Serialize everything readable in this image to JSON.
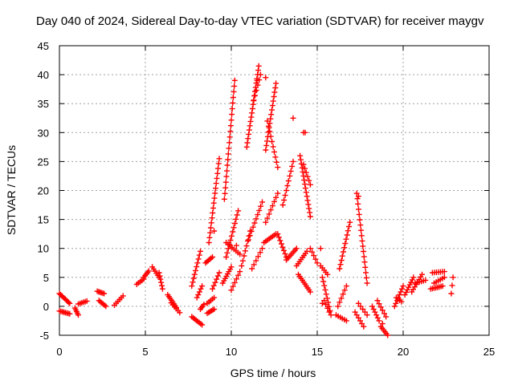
{
  "chart_data": {
    "type": "scatter",
    "title": "Day 040 of 2024, Sidereal Day-to-day VTEC variation (SDTVAR) for receiver maygv",
    "xlabel": "GPS time / hours",
    "ylabel": "SDTVAR / TECUs",
    "xlim": [
      0,
      25
    ],
    "ylim": [
      -5,
      45
    ],
    "xticks": [
      "0",
      "5",
      "10",
      "15",
      "20",
      "25"
    ],
    "yticks": [
      "-5",
      "0",
      "5",
      "10",
      "15",
      "20",
      "25",
      "30",
      "35",
      "40",
      "45"
    ],
    "grid": true,
    "marker": "+",
    "color": "#ff0000",
    "segments": [
      {
        "x0": 0.0,
        "y0": 2.2,
        "x1": 0.6,
        "y1": 0.5,
        "n": 10
      },
      {
        "x0": 0.0,
        "y0": -0.8,
        "x1": 0.6,
        "y1": -1.3,
        "n": 8
      },
      {
        "x0": 0.9,
        "y0": -0.3,
        "x1": 1.1,
        "y1": -1.5,
        "n": 5
      },
      {
        "x0": 1.1,
        "y0": 0.4,
        "x1": 1.6,
        "y1": 0.9,
        "n": 6
      },
      {
        "x0": 2.2,
        "y0": 2.6,
        "x1": 2.6,
        "y1": 2.2,
        "n": 6
      },
      {
        "x0": 2.3,
        "y0": 1.0,
        "x1": 2.7,
        "y1": 0.0,
        "n": 6
      },
      {
        "x0": 3.2,
        "y0": 0.2,
        "x1": 3.7,
        "y1": 1.8,
        "n": 6
      },
      {
        "x0": 4.5,
        "y0": 3.8,
        "x1": 4.9,
        "y1": 4.7,
        "n": 5
      },
      {
        "x0": 4.9,
        "y0": 5.0,
        "x1": 5.2,
        "y1": 6.1,
        "n": 5
      },
      {
        "x0": 5.4,
        "y0": 6.8,
        "x1": 5.8,
        "y1": 5.0,
        "n": 6
      },
      {
        "x0": 5.8,
        "y0": 5.8,
        "x1": 6.0,
        "y1": 3.0,
        "n": 6
      },
      {
        "x0": 6.3,
        "y0": 2.0,
        "x1": 6.8,
        "y1": -0.2,
        "n": 8
      },
      {
        "x0": 6.5,
        "y0": 0.6,
        "x1": 7.0,
        "y1": -1.1,
        "n": 6
      },
      {
        "x0": 7.7,
        "y0": 3.5,
        "x1": 8.2,
        "y1": 9.5,
        "n": 10
      },
      {
        "x0": 7.7,
        "y0": -1.8,
        "x1": 8.3,
        "y1": -3.2,
        "n": 8
      },
      {
        "x0": 8.0,
        "y0": 1.5,
        "x1": 8.3,
        "y1": 3.5,
        "n": 5
      },
      {
        "x0": 8.2,
        "y0": -0.5,
        "x1": 8.4,
        "y1": 0.3,
        "n": 4
      },
      {
        "x0": 8.5,
        "y0": 7.5,
        "x1": 8.9,
        "y1": 8.5,
        "n": 6
      },
      {
        "x0": 8.6,
        "y0": -1.2,
        "x1": 9.0,
        "y1": -0.5,
        "n": 6
      },
      {
        "x0": 8.7,
        "y0": 11.0,
        "x1": 9.3,
        "y1": 25.5,
        "n": 18
      },
      {
        "x0": 8.9,
        "y0": 3.0,
        "x1": 9.3,
        "y1": 5.8,
        "n": 6
      },
      {
        "x0": 8.6,
        "y0": 0.5,
        "x1": 9.0,
        "y1": 1.5,
        "n": 5
      },
      {
        "x0": 9.5,
        "y0": 4.0,
        "x1": 10.0,
        "y1": 6.8,
        "n": 8
      },
      {
        "x0": 9.6,
        "y0": 18.5,
        "x1": 10.2,
        "y1": 39.0,
        "n": 22
      },
      {
        "x0": 9.7,
        "y0": 8.5,
        "x1": 10.4,
        "y1": 16.5,
        "n": 12
      },
      {
        "x0": 9.7,
        "y0": 11.0,
        "x1": 10.5,
        "y1": 9.0,
        "n": 8
      },
      {
        "x0": 10.0,
        "y0": 2.8,
        "x1": 10.5,
        "y1": 6.0,
        "n": 6
      },
      {
        "x0": 10.6,
        "y0": 7.0,
        "x1": 11.1,
        "y1": 13.0,
        "n": 8
      },
      {
        "x0": 10.9,
        "y0": 27.5,
        "x1": 11.6,
        "y1": 41.5,
        "n": 20
      },
      {
        "x0": 11.0,
        "y0": 11.5,
        "x1": 11.8,
        "y1": 18.0,
        "n": 10
      },
      {
        "x0": 11.3,
        "y0": 35.5,
        "x1": 11.7,
        "y1": 40.0,
        "n": 6
      },
      {
        "x0": 11.2,
        "y0": 6.5,
        "x1": 11.8,
        "y1": 10.0,
        "n": 6
      },
      {
        "x0": 11.9,
        "y0": 11.0,
        "x1": 12.6,
        "y1": 12.5,
        "n": 8
      },
      {
        "x0": 12.0,
        "y0": 27.0,
        "x1": 12.6,
        "y1": 38.5,
        "n": 16
      },
      {
        "x0": 12.0,
        "y0": 14.5,
        "x1": 12.7,
        "y1": 19.5,
        "n": 8
      },
      {
        "x0": 12.1,
        "y0": 32.0,
        "x1": 12.7,
        "y1": 24.0,
        "n": 10
      },
      {
        "x0": 12.7,
        "y0": 12.5,
        "x1": 13.2,
        "y1": 8.5,
        "n": 8
      },
      {
        "x0": 13.0,
        "y0": 17.5,
        "x1": 13.6,
        "y1": 25.0,
        "n": 10
      },
      {
        "x0": 13.2,
        "y0": 8.0,
        "x1": 13.8,
        "y1": 10.0,
        "n": 8
      },
      {
        "x0": 14.0,
        "y0": 26.0,
        "x1": 14.6,
        "y1": 15.5,
        "n": 16
      },
      {
        "x0": 14.2,
        "y0": 24.5,
        "x1": 14.6,
        "y1": 21.0,
        "n": 6
      },
      {
        "x0": 13.8,
        "y0": 7.0,
        "x1": 14.4,
        "y1": 9.5,
        "n": 8
      },
      {
        "x0": 13.9,
        "y0": 5.5,
        "x1": 14.6,
        "y1": 2.5,
        "n": 10
      },
      {
        "x0": 14.6,
        "y0": 10.0,
        "x1": 15.0,
        "y1": 7.5,
        "n": 5
      },
      {
        "x0": 15.2,
        "y0": 7.0,
        "x1": 15.6,
        "y1": 5.5,
        "n": 5
      },
      {
        "x0": 15.3,
        "y0": 5.0,
        "x1": 15.8,
        "y1": -1.5,
        "n": 10
      },
      {
        "x0": 15.4,
        "y0": 1.0,
        "x1": 15.7,
        "y1": -1.0,
        "n": 4
      },
      {
        "x0": 16.3,
        "y0": 6.5,
        "x1": 16.9,
        "y1": 14.5,
        "n": 12
      },
      {
        "x0": 16.2,
        "y0": 0.0,
        "x1": 16.7,
        "y1": 3.5,
        "n": 6
      },
      {
        "x0": 16.1,
        "y0": -1.5,
        "x1": 16.7,
        "y1": -2.5,
        "n": 6
      },
      {
        "x0": 17.3,
        "y0": 19.5,
        "x1": 17.9,
        "y1": 4.0,
        "n": 18
      },
      {
        "x0": 17.2,
        "y0": -1.0,
        "x1": 17.7,
        "y1": -3.5,
        "n": 6
      },
      {
        "x0": 17.4,
        "y0": 0.5,
        "x1": 17.9,
        "y1": -1.5,
        "n": 5
      },
      {
        "x0": 18.2,
        "y0": 0.0,
        "x1": 18.6,
        "y1": -2.5,
        "n": 6
      },
      {
        "x0": 18.5,
        "y0": 1.0,
        "x1": 19.0,
        "y1": -1.8,
        "n": 6
      },
      {
        "x0": 18.7,
        "y0": -3.5,
        "x1": 19.1,
        "y1": -5.0,
        "n": 6
      },
      {
        "x0": 19.5,
        "y0": 0.0,
        "x1": 20.0,
        "y1": 3.5,
        "n": 8
      },
      {
        "x0": 19.6,
        "y0": 1.5,
        "x1": 19.9,
        "y1": 0.8,
        "n": 4
      },
      {
        "x0": 20.1,
        "y0": 2.0,
        "x1": 20.6,
        "y1": 5.0,
        "n": 8
      },
      {
        "x0": 20.5,
        "y0": 2.5,
        "x1": 21.1,
        "y1": 5.5,
        "n": 8
      },
      {
        "x0": 20.7,
        "y0": 4.0,
        "x1": 21.3,
        "y1": 4.5,
        "n": 6
      },
      {
        "x0": 21.6,
        "y0": 3.0,
        "x1": 22.3,
        "y1": 3.5,
        "n": 8
      },
      {
        "x0": 21.7,
        "y0": 5.8,
        "x1": 22.4,
        "y1": 6.0,
        "n": 7
      },
      {
        "x0": 21.8,
        "y0": 4.0,
        "x1": 22.4,
        "y1": 5.0,
        "n": 6
      },
      {
        "x0": 22.8,
        "y0": 2.2,
        "x1": 22.9,
        "y1": 5.0,
        "n": 3
      }
    ],
    "points": [
      {
        "x": 9.0,
        "y": 13.0
      },
      {
        "x": 12.0,
        "y": 39.5
      },
      {
        "x": 13.6,
        "y": 32.5
      },
      {
        "x": 14.2,
        "y": 30.0
      },
      {
        "x": 14.3,
        "y": 30.0
      },
      {
        "x": 15.2,
        "y": 10.0
      },
      {
        "x": 15.3,
        "y": 0.5
      },
      {
        "x": 17.4,
        "y": 19.0
      },
      {
        "x": 18.8,
        "y": -3.0
      },
      {
        "x": 10.3,
        "y": 10.5
      },
      {
        "x": 11.5,
        "y": 39.0
      }
    ]
  }
}
